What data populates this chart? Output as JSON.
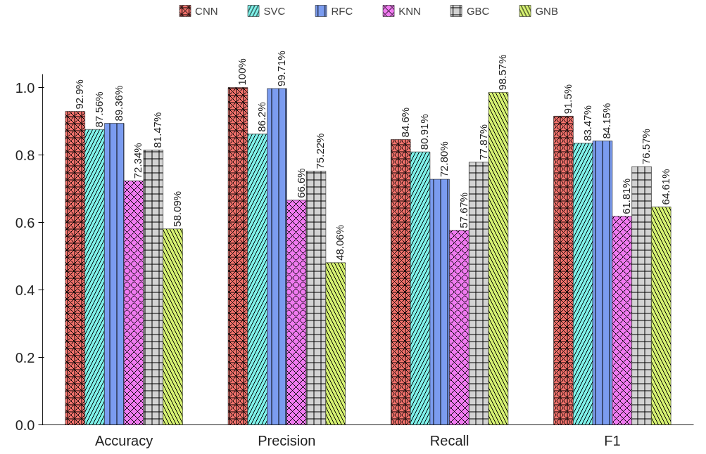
{
  "chart_data": {
    "type": "bar",
    "categories": [
      "Accuracy",
      "Precision",
      "Recall",
      "F1"
    ],
    "series": [
      {
        "name": "CNN",
        "color": "#f4726c",
        "values": [
          0.929,
          1.0,
          0.846,
          0.915
        ],
        "value_labels": [
          "92.9%",
          "100%",
          "84.6%",
          "91.5%"
        ]
      },
      {
        "name": "SVC",
        "color": "#7ff2ea",
        "values": [
          0.8756,
          0.862,
          0.8091,
          0.8347
        ],
        "value_labels": [
          "87.56%",
          "86.2%",
          "80.91%",
          "83.47%"
        ]
      },
      {
        "name": "RFC",
        "color": "#7b9cf0",
        "values": [
          0.8936,
          0.9971,
          0.728,
          0.8415
        ],
        "value_labels": [
          "89.36%",
          "99.71%",
          "72.80%",
          "84.15%"
        ]
      },
      {
        "name": "KNN",
        "color": "#f07af0",
        "values": [
          0.7234,
          0.666,
          0.5767,
          0.6181
        ],
        "value_labels": [
          "72.34%",
          "66.6%",
          "57.67%",
          "61.81%"
        ]
      },
      {
        "name": "GBC",
        "color": "#d3d3d3",
        "values": [
          0.8147,
          0.7522,
          0.7787,
          0.7657
        ],
        "value_labels": [
          "81.47%",
          "75.22%",
          "77.87%",
          "76.57%"
        ]
      },
      {
        "name": "GNB",
        "color": "#d6f272",
        "values": [
          0.5809,
          0.4806,
          0.9857,
          0.6461
        ],
        "value_labels": [
          "58.09%",
          "48.06%",
          "98.57%",
          "64.61%"
        ]
      }
    ],
    "ylim": [
      0,
      1.04
    ],
    "yticks": [
      {
        "value": 0,
        "label": "0.0"
      },
      {
        "value": 0.2,
        "label": "0.2"
      },
      {
        "value": 0.4,
        "label": "0.4"
      },
      {
        "value": 0.6,
        "label": "0.6"
      },
      {
        "value": 0.8,
        "label": "0.8"
      },
      {
        "value": 1.0,
        "label": "1.0"
      }
    ],
    "grid": false,
    "legend": "top"
  }
}
